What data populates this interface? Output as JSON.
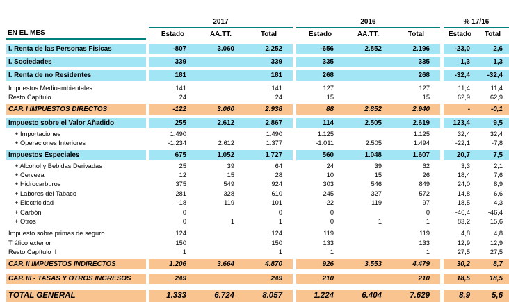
{
  "header": {
    "row_label": "EN EL MES",
    "groups": [
      {
        "label": "2017",
        "cols": [
          "Estado",
          "AA.TT.",
          "Total"
        ]
      },
      {
        "label": "2016",
        "cols": [
          "Estado",
          "AA.TT.",
          "Total"
        ]
      },
      {
        "label": "% 17/16",
        "cols": [
          "Estado",
          "Total"
        ]
      }
    ]
  },
  "colors": {
    "section_row_bg": "#a2e5f4",
    "subtotal_row_bg": "#fac490",
    "rule_line": "#00807a"
  },
  "rows": [
    {
      "label": "I. Renta de las Personas Fisicas",
      "kind": "section",
      "indent": false,
      "cells": [
        "-807",
        "3.060",
        "2.252",
        "-656",
        "2.852",
        "2.196",
        "-23,0",
        "2,6"
      ]
    },
    {
      "label": "I. Sociedades",
      "kind": "section",
      "indent": false,
      "cells": [
        "339",
        "",
        "339",
        "335",
        "",
        "335",
        "1,3",
        "1,3"
      ]
    },
    {
      "label": "I. Renta de no Residentes",
      "kind": "section",
      "indent": false,
      "cells": [
        "181",
        "",
        "181",
        "268",
        "",
        "268",
        "-32,4",
        "-32,4"
      ]
    },
    {
      "label": "Impuestos Medioambientales",
      "kind": "item",
      "indent": false,
      "cells": [
        "141",
        "",
        "141",
        "127",
        "",
        "127",
        "11,4",
        "11,4"
      ]
    },
    {
      "label": "Resto Capítulo I",
      "kind": "item",
      "indent": false,
      "cells": [
        "24",
        "",
        "24",
        "15",
        "",
        "15",
        "62,9",
        "62,9"
      ]
    },
    {
      "label": "CAP. I IMPUESTOS DIRECTOS",
      "kind": "subtotal",
      "indent": false,
      "cells": [
        "-122",
        "3.060",
        "2.938",
        "88",
        "2.852",
        "2.940",
        "-",
        "-0,1"
      ]
    },
    {
      "label": "Impuesto sobre el Valor Añadido",
      "kind": "section",
      "indent": false,
      "cells": [
        "255",
        "2.612",
        "2.867",
        "114",
        "2.505",
        "2.619",
        "123,4",
        "9,5"
      ]
    },
    {
      "label": "+ Importaciones",
      "kind": "item",
      "indent": true,
      "cells": [
        "1.490",
        "",
        "1.490",
        "1.125",
        "",
        "1.125",
        "32,4",
        "32,4"
      ]
    },
    {
      "label": "+ Operaciones Interiores",
      "kind": "item",
      "indent": true,
      "cells": [
        "-1.234",
        "2.612",
        "1.377",
        "-1.011",
        "2.505",
        "1.494",
        "-22,1",
        "-7,8"
      ]
    },
    {
      "label": "Impuestos Especiales",
      "kind": "section",
      "indent": false,
      "cells": [
        "675",
        "1.052",
        "1.727",
        "560",
        "1.048",
        "1.607",
        "20,7",
        "7,5"
      ]
    },
    {
      "label": "+ Alcohol y Bebidas Derivadas",
      "kind": "item",
      "indent": true,
      "cells": [
        "25",
        "39",
        "64",
        "24",
        "39",
        "62",
        "3,3",
        "2,1"
      ]
    },
    {
      "label": "+ Cerveza",
      "kind": "item",
      "indent": true,
      "cells": [
        "12",
        "15",
        "28",
        "10",
        "15",
        "26",
        "18,4",
        "7,6"
      ]
    },
    {
      "label": "+ Hidrocarburos",
      "kind": "item",
      "indent": true,
      "cells": [
        "375",
        "549",
        "924",
        "303",
        "546",
        "849",
        "24,0",
        "8,9"
      ]
    },
    {
      "label": "+ Labores del Tabaco",
      "kind": "item",
      "indent": true,
      "cells": [
        "281",
        "328",
        "610",
        "245",
        "327",
        "572",
        "14,8",
        "6,6"
      ]
    },
    {
      "label": "+ Electricidad",
      "kind": "item",
      "indent": true,
      "cells": [
        "-18",
        "119",
        "101",
        "-22",
        "119",
        "97",
        "18,5",
        "4,3"
      ]
    },
    {
      "label": "+ Carbón",
      "kind": "item",
      "indent": true,
      "cells": [
        "0",
        "",
        "0",
        "0",
        "",
        "0",
        "-46,4",
        "-46,4"
      ]
    },
    {
      "label": "+ Otros",
      "kind": "item",
      "indent": true,
      "cells": [
        "0",
        "1",
        "1",
        "0",
        "1",
        "1",
        "83,2",
        "15,6"
      ]
    },
    {
      "label": "Impuesto sobre primas de seguro",
      "kind": "item",
      "indent": false,
      "cells": [
        "124",
        "",
        "124",
        "119",
        "",
        "119",
        "4,8",
        "4,8"
      ]
    },
    {
      "label": "Tráfico exterior",
      "kind": "item",
      "indent": false,
      "cells": [
        "150",
        "",
        "150",
        "133",
        "",
        "133",
        "12,9",
        "12,9"
      ]
    },
    {
      "label": "Resto Capítulo II",
      "kind": "item",
      "indent": false,
      "cells": [
        "1",
        "",
        "1",
        "1",
        "",
        "1",
        "27,5",
        "27,5"
      ]
    },
    {
      "label": "CAP. II IMPUESTOS INDIRECTOS",
      "kind": "subtotal",
      "indent": false,
      "cells": [
        "1.206",
        "3.664",
        "4.870",
        "926",
        "3.553",
        "4.479",
        "30,2",
        "8,7"
      ]
    },
    {
      "label": "CAP. III - TASAS Y OTROS INGRESOS",
      "kind": "subtotal",
      "indent": false,
      "cells": [
        "249",
        "",
        "249",
        "210",
        "",
        "210",
        "18,5",
        "18,5"
      ]
    },
    {
      "label": "TOTAL GENERAL",
      "kind": "total",
      "indent": false,
      "cells": [
        "1.333",
        "6.724",
        "8.057",
        "1.224",
        "6.404",
        "7.629",
        "8,9",
        "5,6"
      ]
    }
  ]
}
